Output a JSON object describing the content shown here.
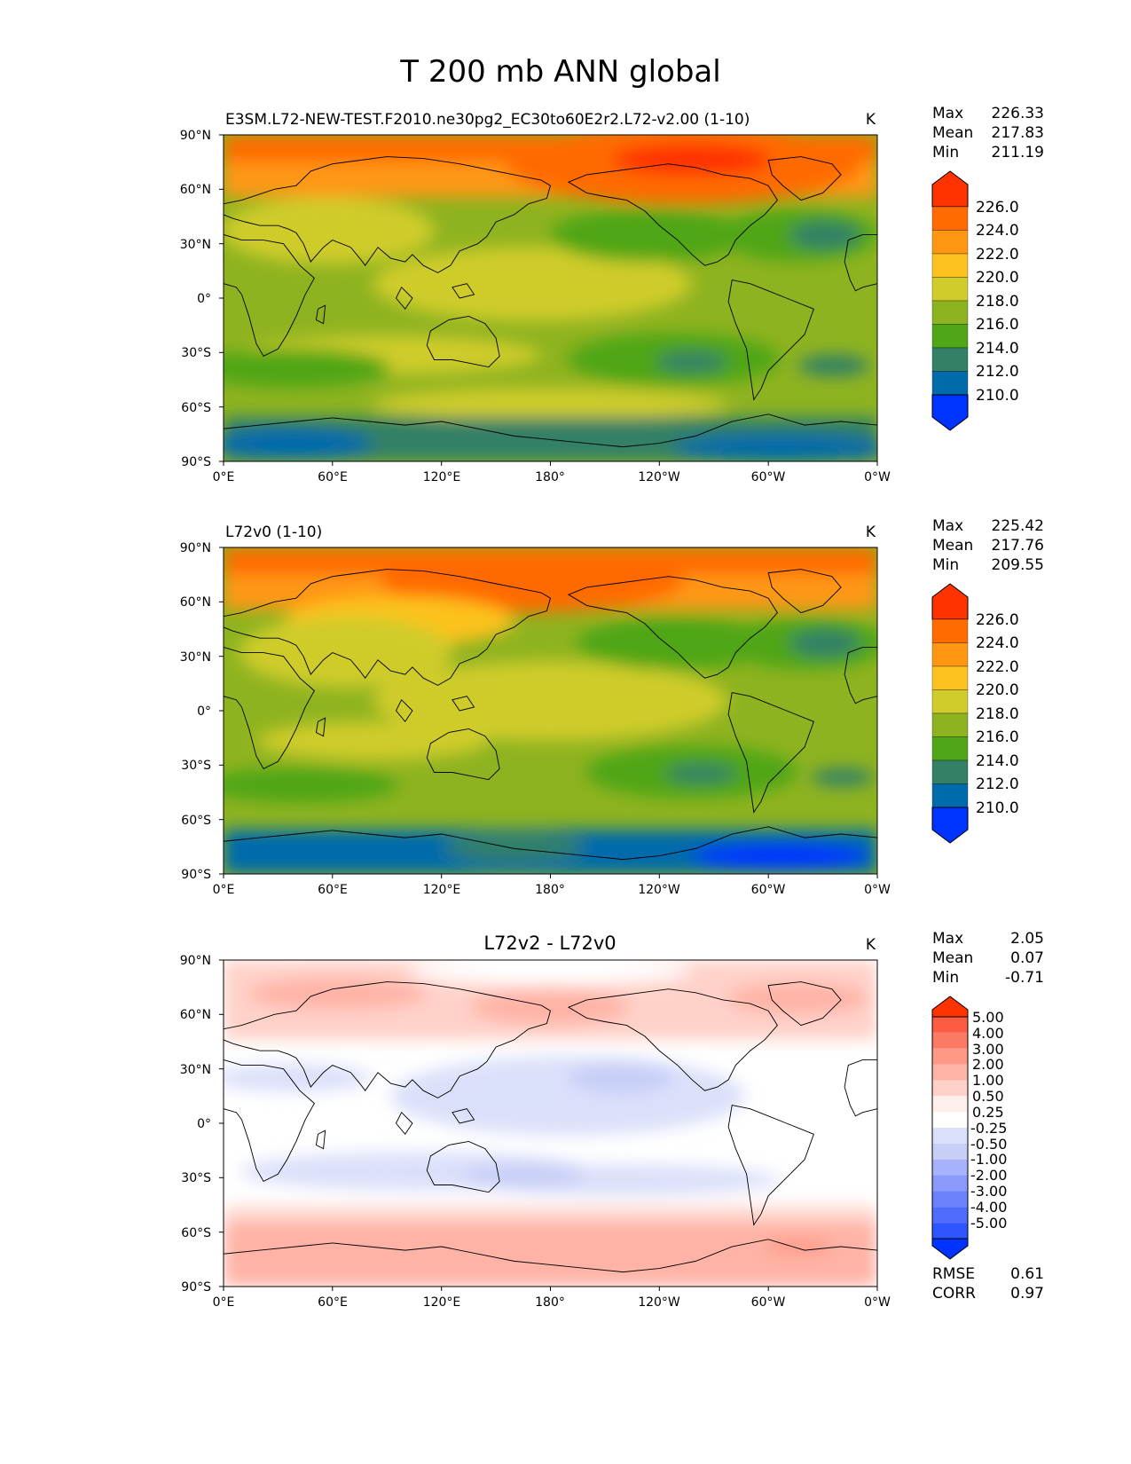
{
  "title": "T 200 mb ANN global",
  "lat_ticks": [
    "90°N",
    "60°N",
    "30°N",
    "0°",
    "30°S",
    "60°S",
    "90°S"
  ],
  "lon_ticks": [
    "0°E",
    "60°E",
    "120°E",
    "180°",
    "120°W",
    "60°W",
    "0°W"
  ],
  "colors": {
    "abs": [
      "#0033ff",
      "#006bab",
      "#338066",
      "#4fa617",
      "#8eb320",
      "#cfcc2b",
      "#fcc21f",
      "#ff9712",
      "#ff6b00",
      "#ff3300"
    ],
    "diff": [
      "#0033ff",
      "#2e55ff",
      "#4f6cfc",
      "#6b82fc",
      "#8a99fa",
      "#a6b3fa",
      "#c7cff7",
      "#dbe0fa",
      "#ffffff",
      "#fff0ed",
      "#ffd1c9",
      "#ffb3a6",
      "#ff9985",
      "#fa7a63",
      "#fc5c42",
      "#ff3300"
    ]
  },
  "chart_data": [
    {
      "type": "heatmap",
      "title": "E3SM.L72-NEW-TEST.F2010.ne30pg2_EC30to60E2r2.L72-v2.00 (1-10)",
      "units": "K",
      "stats": {
        "max_label": "Max",
        "mean_label": "Mean",
        "min_label": "Min",
        "max": "226.33",
        "mean": "217.83",
        "min": "211.19"
      },
      "colorbar_levels": [
        "210.0",
        "212.0",
        "214.0",
        "216.0",
        "218.0",
        "220.0",
        "222.0",
        "224.0",
        "226.0"
      ],
      "xlabel": "",
      "ylabel": "",
      "xlim": [
        0,
        360
      ],
      "ylim": [
        -90,
        90
      ]
    },
    {
      "type": "heatmap",
      "title": "L72v0 (1-10)",
      "units": "K",
      "stats": {
        "max_label": "Max",
        "mean_label": "Mean",
        "min_label": "Min",
        "max": "225.42",
        "mean": "217.76",
        "min": "209.55"
      },
      "colorbar_levels": [
        "210.0",
        "212.0",
        "214.0",
        "216.0",
        "218.0",
        "220.0",
        "222.0",
        "224.0",
        "226.0"
      ],
      "xlabel": "",
      "ylabel": "",
      "xlim": [
        0,
        360
      ],
      "ylim": [
        -90,
        90
      ]
    },
    {
      "type": "heatmap",
      "title": "L72v2 - L72v0",
      "units": "K",
      "stats": {
        "max_label": "Max",
        "mean_label": "Mean",
        "min_label": "Min",
        "max": "2.05",
        "mean": "0.07",
        "min": "-0.71"
      },
      "colorbar_levels": [
        "-5.00",
        "-4.00",
        "-3.00",
        "-2.00",
        "-1.00",
        "-0.50",
        "-0.25",
        "0.25",
        "0.50",
        "1.00",
        "2.00",
        "3.00",
        "4.00",
        "5.00"
      ],
      "metrics": {
        "rmse_label": "RMSE",
        "rmse": "0.61",
        "corr_label": "CORR",
        "corr": "0.97"
      },
      "xlabel": "",
      "ylabel": "",
      "xlim": [
        0,
        360
      ],
      "ylim": [
        -90,
        90
      ]
    }
  ]
}
